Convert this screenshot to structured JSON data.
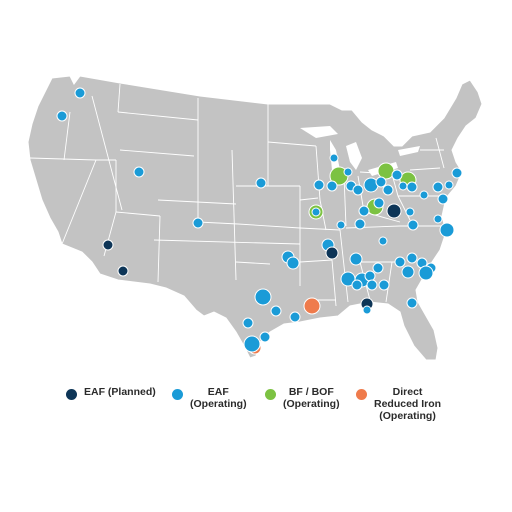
{
  "colors": {
    "land": "#c3c3c3",
    "borders": "#ffffff",
    "eaf_planned": "#0d3557",
    "eaf_operating": "#1a9bd7",
    "bf_bof": "#7cc242",
    "dri": "#ef7b4c"
  },
  "legend": [
    {
      "key": "eaf_planned",
      "label": "EAF (Planned)"
    },
    {
      "key": "eaf_operating",
      "label": "EAF\n(Operating)"
    },
    {
      "key": "bf_bof",
      "label": "BF / BOF\n(Operating)"
    },
    {
      "key": "dri",
      "label": "Direct\nReduced Iron\n(Operating)"
    }
  ],
  "facility_categories": [
    "eaf_planned",
    "eaf_operating",
    "bf_bof",
    "dri"
  ]
}
